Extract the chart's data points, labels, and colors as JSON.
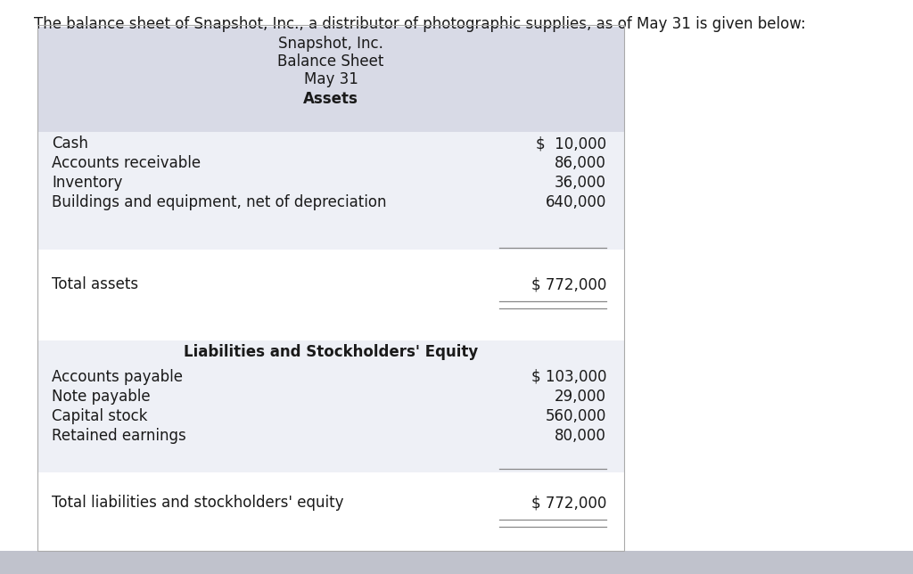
{
  "intro_text": "The balance sheet of Snapshot, Inc., a distributor of photographic supplies, as of May 31 is given below:",
  "header_lines": [
    "Snapshot, Inc.",
    "Balance Sheet",
    "May 31"
  ],
  "header_bold": "Assets",
  "header_bg": "#d8dae6",
  "table_bg": "#eef0f6",
  "assets_items": [
    [
      "Cash",
      "$  10,000"
    ],
    [
      "Accounts receivable",
      "86,000"
    ],
    [
      "Inventory",
      "36,000"
    ],
    [
      "Buildings and equipment, net of depreciation",
      "640,000"
    ]
  ],
  "total_assets_label": "Total assets",
  "total_assets_value": "$ 772,000",
  "liabilities_header": "Liabilities and Stockholders' Equity",
  "liabilities_items": [
    [
      "Accounts payable",
      "$ 103,000"
    ],
    [
      "Note payable",
      "29,000"
    ],
    [
      "Capital stock",
      "560,000"
    ],
    [
      "Retained earnings",
      "80,000"
    ]
  ],
  "total_liabilities_label": "Total liabilities and stockholders' equity",
  "total_liabilities_value": "$ 772,000",
  "font_size": 12,
  "text_color": "#1a1a1a",
  "line_color": "#888888",
  "bottom_bar_color": "#c0c2cc"
}
